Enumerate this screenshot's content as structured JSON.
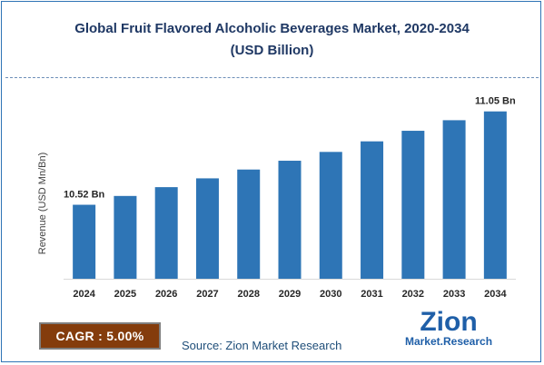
{
  "title_line1": "Global Fruit Flavored Alcoholic Beverages Market, 2020-2034",
  "title_line2": "(USD Billion)",
  "cagr_text": "CAGR :  5.00%",
  "source_text": "Source: Zion Market Research",
  "logo": {
    "top": "Zion",
    "bottom": "Market.Research"
  },
  "colors": {
    "bar": "#2e75b6",
    "title": "#1f3864",
    "cagr_bg": "#843c0c",
    "logo_blue": "#1f5fa8",
    "logo_orange": "#e36c09"
  },
  "chart_data": {
    "type": "bar",
    "ylabel": "Revenue (USD Mn/Bn)",
    "xlabel": "",
    "categories": [
      "2024",
      "2025",
      "2026",
      "2027",
      "2028",
      "2029",
      "2030",
      "2031",
      "2032",
      "2033",
      "2034"
    ],
    "values": [
      10.52,
      10.57,
      10.62,
      10.67,
      10.72,
      10.77,
      10.82,
      10.88,
      10.94,
      11.0,
      11.05
    ],
    "data_labels": [
      "10.52 Bn",
      "",
      "",
      "",
      "",
      "",
      "",
      "",
      "",
      "",
      "11.05 Bn"
    ],
    "ylim": [
      10.1,
      11.1
    ],
    "grid": false
  }
}
